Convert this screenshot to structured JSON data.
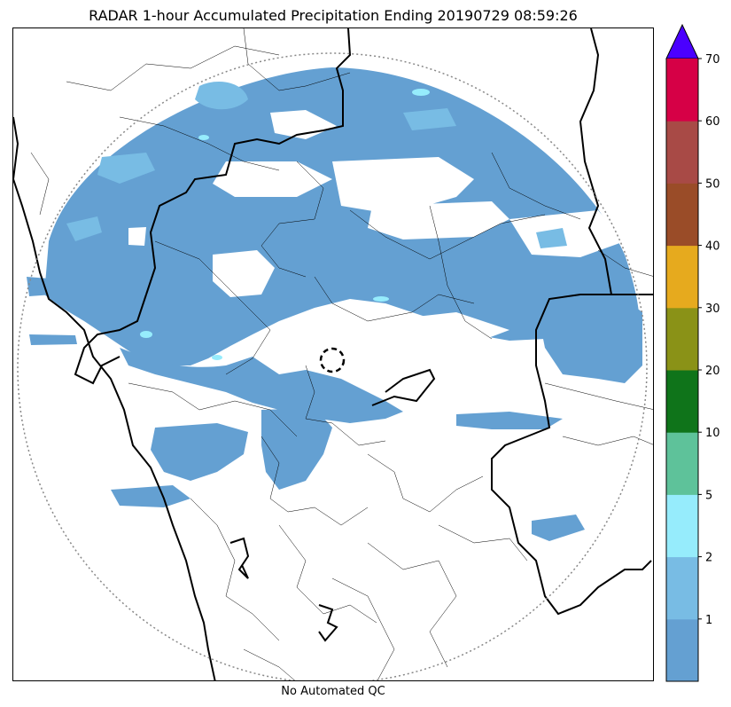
{
  "title": "RADAR 1-hour Accumulated Precipitation Ending 20190729 08:59:26",
  "footer": "No Automated QC",
  "chart_data": {
    "type": "heatmap",
    "title": "RADAR 1-hour Accumulated Precipitation Ending 20190729 08:59:26",
    "xlabel": "",
    "ylabel": "",
    "colorbar": {
      "bins": [
        {
          "from": 0,
          "to": 1,
          "color": "#64a0d2"
        },
        {
          "from": 1,
          "to": 2,
          "color": "#78bce4"
        },
        {
          "from": 2,
          "to": 5,
          "color": "#96ecfc"
        },
        {
          "from": 5,
          "to": 10,
          "color": "#5ec29a"
        },
        {
          "from": 10,
          "to": 20,
          "color": "#0f741a"
        },
        {
          "from": 20,
          "to": 30,
          "color": "#8a9217"
        },
        {
          "from": 30,
          "to": 40,
          "color": "#e6aa1e"
        },
        {
          "from": 40,
          "to": 50,
          "color": "#9a4c28"
        },
        {
          "from": 50,
          "to": 60,
          "color": "#a84a46"
        },
        {
          "from": 60,
          "to": 70,
          "color": "#d60046"
        }
      ],
      "tick_labels": [
        "1",
        "2",
        "5",
        "10",
        "20",
        "30",
        "40",
        "50",
        "60",
        "70"
      ],
      "extend_max_color": "#4a00ff"
    },
    "annotation": "No Automated QC"
  }
}
